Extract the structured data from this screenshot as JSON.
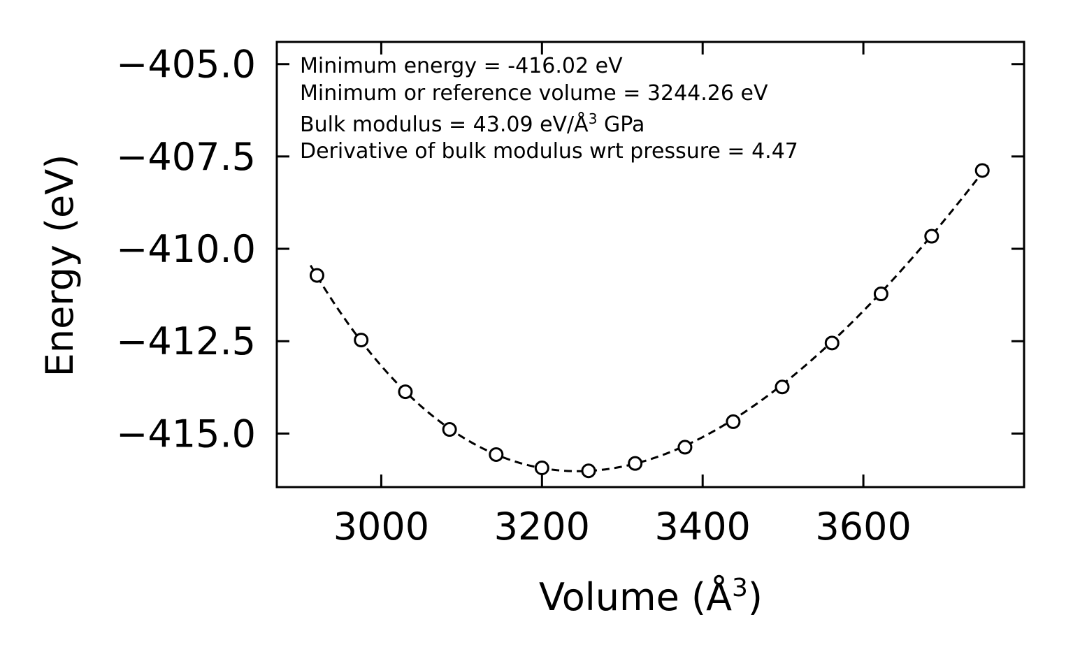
{
  "chart_data": {
    "type": "scatter",
    "title": "",
    "xlabel_main": "Volume (Å",
    "xlabel_sup": "3",
    "xlabel_close": ")",
    "ylabel": "Energy (eV)",
    "xlim": [
      2870,
      3800
    ],
    "ylim": [
      -416.45,
      -404.4
    ],
    "xticks": [
      3000,
      3200,
      3400,
      3600
    ],
    "xtick_labels": [
      "3000",
      "3200",
      "3400",
      "3600"
    ],
    "yticks": [
      -405.0,
      -407.5,
      -410.0,
      -412.5,
      -415.0
    ],
    "ytick_labels": [
      "−405.0",
      "−407.5",
      "−410.0",
      "−412.5",
      "−415.0"
    ],
    "series": [
      {
        "name": "data",
        "style": "open-circle",
        "x": [
          2920,
          2975,
          3030,
          3085,
          3143,
          3200,
          3258,
          3316,
          3378,
          3438,
          3499,
          3561,
          3622,
          3685,
          3748
        ],
        "y": [
          -410.72,
          -412.47,
          -413.87,
          -414.89,
          -415.57,
          -415.93,
          -416.01,
          -415.81,
          -415.37,
          -414.68,
          -413.74,
          -412.55,
          -411.22,
          -409.66,
          -407.88
        ]
      },
      {
        "name": "fit",
        "style": "dashed-line",
        "x_range": [
          2912,
          3755
        ]
      }
    ],
    "annotations": [
      "Minimum energy = -416.02 eV",
      "Minimum or reference volume = 3244.26 eV",
      "Bulk modulus = 43.09 eV/Å",
      "3",
      " GPa",
      "Derivative of bulk modulus wrt pressure = 4.47"
    ],
    "fit_params": {
      "E0": -416.02,
      "V0": 3244.26,
      "B0": 43.09,
      "B0_prime": 4.47
    },
    "colors": {
      "line": "#000000",
      "marker": "#000000",
      "background": "#ffffff"
    }
  }
}
